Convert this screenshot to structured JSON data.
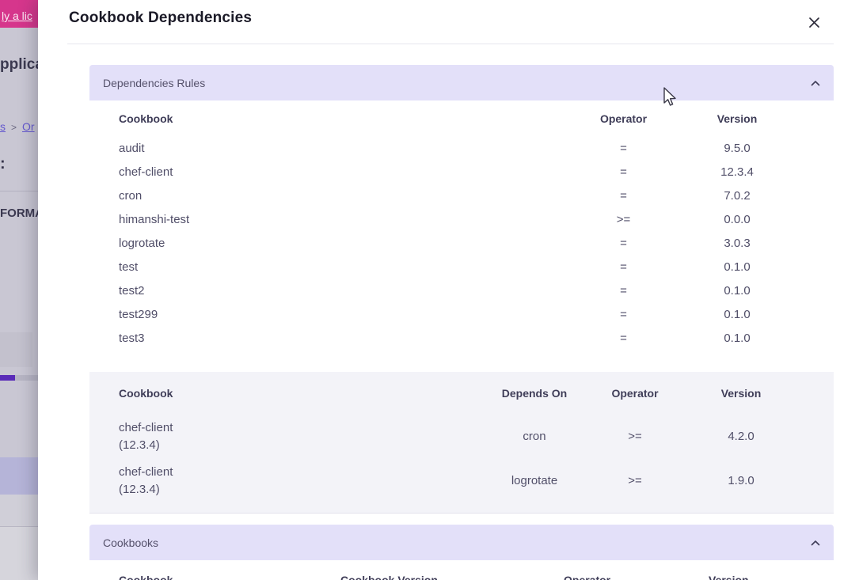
{
  "modal": {
    "title": "Cookbook Dependencies",
    "close_icon": "x"
  },
  "background_page": {
    "pink_banner_link": "ly a lic",
    "heading_fragment": "pplica",
    "breadcrumb": {
      "part1": "s",
      "separator": ">",
      "part2": "Or"
    },
    "colon": ":",
    "label_fragment": "FORMA",
    "colors": {
      "pink_banner": "#d6368c",
      "dimmed_bg": "#c9c7d3",
      "progress_fill": "#5a2bb8",
      "lavender_row": "#b5b4d8",
      "link": "#6458ce"
    }
  },
  "sections": {
    "dependencies_rules": {
      "label": "Dependencies Rules",
      "rules_table": {
        "headers": [
          "Cookbook",
          "Operator",
          "Version"
        ],
        "rows": [
          {
            "cookbook": "audit",
            "operator": "=",
            "version": "9.5.0"
          },
          {
            "cookbook": "chef-client",
            "operator": "=",
            "version": "12.3.4"
          },
          {
            "cookbook": "cron",
            "operator": "=",
            "version": "7.0.2"
          },
          {
            "cookbook": "himanshi-test",
            "operator": ">=",
            "version": "0.0.0"
          },
          {
            "cookbook": "logrotate",
            "operator": "=",
            "version": "3.0.3"
          },
          {
            "cookbook": "test",
            "operator": "=",
            "version": "0.1.0"
          },
          {
            "cookbook": "test2",
            "operator": "=",
            "version": "0.1.0"
          },
          {
            "cookbook": "test299",
            "operator": "=",
            "version": "0.1.0"
          },
          {
            "cookbook": "test3",
            "operator": "=",
            "version": "0.1.0"
          }
        ]
      },
      "depends_table": {
        "headers": [
          "Cookbook",
          "Depends On",
          "Operator",
          "Version"
        ],
        "rows": [
          {
            "cookbook": "chef-client",
            "cookbook_version": "(12.3.4)",
            "depends_on": "cron",
            "operator": ">=",
            "version": "4.2.0"
          },
          {
            "cookbook": "chef-client",
            "cookbook_version": "(12.3.4)",
            "depends_on": "logrotate",
            "operator": ">=",
            "version": "1.9.0"
          }
        ]
      }
    },
    "cookbooks": {
      "label": "Cookbooks",
      "table_headers": [
        "Cookbook",
        "Cookbook Version",
        "Operator",
        "Version"
      ]
    }
  },
  "theme": {
    "accordion_header_bg": "#e3e0f9",
    "accordion_header_text": "#55516b",
    "table2_bg": "#f3f3f8",
    "modal_bg": "#ffffff"
  }
}
